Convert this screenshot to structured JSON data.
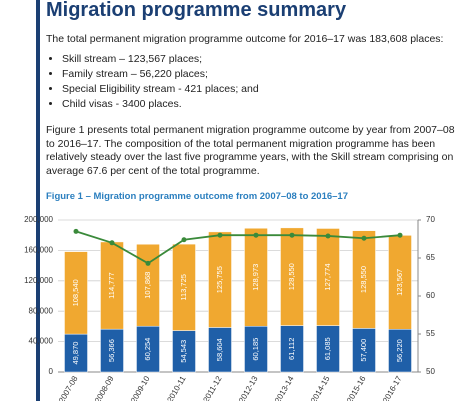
{
  "title": "Migration programme summary",
  "intro": "The total permanent migration programme outcome for 2016–17 was 183,608 places:",
  "bullets": [
    "Skill stream – 123,567 places;",
    "Family stream – 56,220 places;",
    "Special Eligibility stream - 421 places; and",
    "Child visas - 3400 places."
  ],
  "paragraph": "Figure 1 presents total permanent migration programme outcome by year from 2007–08 to 2016–17. The composition of the total permanent migration programme has been relatively steady over the last five programme years, with the Skill stream comprising on average 67.6 per cent of the total programme.",
  "figure_caption": "Figure 1 – Migration programme outcome from 2007–08 to 2016–17",
  "chart_data": {
    "type": "bar",
    "stacked": true,
    "categories": [
      "2007-08",
      "2008-09",
      "2009-10",
      "2010-11",
      "2011-12",
      "2012-13",
      "2013-14",
      "2014-15",
      "2015-16",
      "2016-17"
    ],
    "series": [
      {
        "color": "#1f5fa8",
        "values": [
          49870,
          56366,
          60254,
          54543,
          58604,
          60185,
          61112,
          61085,
          57400,
          56220
        ],
        "value_labels": [
          "49,870",
          "56,366",
          "60,254",
          "54,543",
          "58,604",
          "60,185",
          "61,112",
          "61,085",
          "57,400",
          "56,220"
        ]
      },
      {
        "color": "#f0a830",
        "values": [
          108540,
          114777,
          107868,
          113725,
          125755,
          128973,
          128550,
          127774,
          128550,
          123567
        ],
        "value_labels": [
          "108,540",
          "114,777",
          "107,868",
          "113,725",
          "125,755",
          "128,973",
          "128,550",
          "127,774",
          "128,550",
          "123,567"
        ]
      },
      {
        "type": "line",
        "axis": "y2",
        "color": "#3a8a3a",
        "values": [
          68.5,
          67,
          64.3,
          67.4,
          68,
          68,
          68,
          67.9,
          67.6,
          68
        ]
      }
    ],
    "ylim": [
      0,
      200000
    ],
    "yticks": [
      0,
      {
        "value": 40000,
        "label": "40,000"
      },
      {
        "value": 80000,
        "label": "80,000"
      },
      {
        "value": 120000,
        "label": "120,000"
      },
      {
        "value": 160000,
        "label": "160,000"
      },
      {
        "value": 200000,
        "label": "200,000"
      }
    ],
    "y2lim": [
      50,
      70
    ],
    "y2ticks": [
      50,
      55,
      60,
      65,
      70
    ],
    "grid": true
  }
}
